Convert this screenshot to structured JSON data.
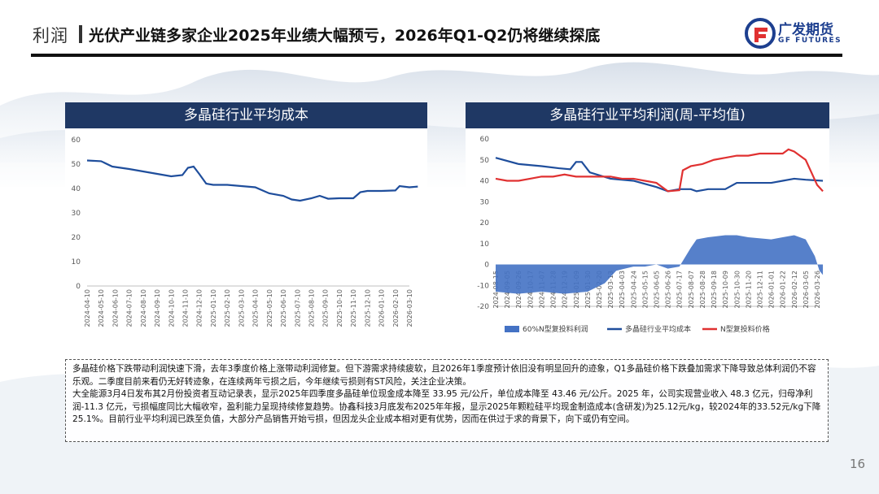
{
  "header": {
    "section_tag": "利润",
    "title": "光伏产业链多家企业2025年业绩大幅预亏，2026年Q1-Q2仍将继续探底",
    "logo_name": "广发期货",
    "logo_en": "GF FUTURES",
    "brand_color": "#1d3f8f"
  },
  "chart_left": {
    "title": "多晶硅行业平均成本"
  },
  "chart_right": {
    "title": "多晶硅行业平均利润(周-平均值)"
  },
  "chart_data": [
    {
      "type": "line",
      "title": "多晶硅行业平均成本",
      "x_tick_labels": [
        "2024-04-10",
        "2024-05-10",
        "2024-06-10",
        "2024-07-10",
        "2024-08-10",
        "2024-09-10",
        "2024-10-10",
        "2024-11-10",
        "2024-12-10",
        "2025-01-10",
        "2025-02-10",
        "2025-03-10",
        "2025-04-10",
        "2025-05-10",
        "2025-06-10",
        "2025-07-10",
        "2025-08-10",
        "2025-09-10",
        "2025-10-10",
        "2025-11-10",
        "2025-12-10",
        "2026-01-10",
        "2026-02-10",
        "2026-03-10"
      ],
      "ylim": [
        0,
        60
      ],
      "y_ticks": [
        0,
        10,
        20,
        30,
        40,
        50,
        60
      ],
      "series": [
        {
          "color": "#1f4e9c",
          "points": [
            [
              0,
              51.5
            ],
            [
              1,
              51.2
            ],
            [
              1.8,
              49
            ],
            [
              3,
              48
            ],
            [
              4,
              47
            ],
            [
              5,
              46
            ],
            [
              6,
              45
            ],
            [
              6.8,
              45.5
            ],
            [
              7.2,
              48.5
            ],
            [
              7.6,
              49
            ],
            [
              8,
              46
            ],
            [
              8.5,
              42
            ],
            [
              9,
              41.5
            ],
            [
              10,
              41.5
            ],
            [
              11,
              41
            ],
            [
              12,
              40.5
            ],
            [
              13,
              38
            ],
            [
              14,
              37
            ],
            [
              14.6,
              35.5
            ],
            [
              15.2,
              35
            ],
            [
              16,
              36
            ],
            [
              16.6,
              37
            ],
            [
              17.2,
              35.8
            ],
            [
              18,
              36
            ],
            [
              19,
              36
            ],
            [
              19.5,
              38.5
            ],
            [
              20,
              39
            ],
            [
              21,
              39
            ],
            [
              22,
              39.2
            ],
            [
              22.3,
              41
            ],
            [
              23,
              40.5
            ],
            [
              23.6,
              40.8
            ]
          ]
        }
      ]
    },
    {
      "type": "line",
      "title": "多晶硅行业平均利润(周-平均值)",
      "x_tick_labels": [
        "2024-08-15",
        "2024-09-05",
        "2024-09-26",
        "2024-10-17",
        "2024-11-07",
        "2024-11-28",
        "2024-12-19",
        "2025-01-09",
        "2025-01-30",
        "2025-02-20",
        "2025-03-13",
        "2025-04-03",
        "2025-04-24",
        "2025-05-15",
        "2025-06-05",
        "2025-06-26",
        "2025-07-17",
        "2025-08-07",
        "2025-08-28",
        "2025-09-18",
        "2025-10-09",
        "2025-10-30",
        "2025-11-20",
        "2025-12-11",
        "2026-01-01",
        "2026-01-22",
        "2026-02-12",
        "2026-03-05",
        "2026-03-26"
      ],
      "ylim": [
        -20,
        60
      ],
      "y_ticks": [
        -20,
        -10,
        0,
        10,
        20,
        30,
        40,
        50,
        60
      ],
      "legend": [
        "60%N型复投料利润",
        "多晶硅行业平均成本",
        "N型复投料价格"
      ],
      "series": [
        {
          "name": "60%N型复投料利润",
          "kind": "area",
          "color": "#4472c4",
          "points": [
            [
              0,
              -13
            ],
            [
              2,
              -14
            ],
            [
              4,
              -13
            ],
            [
              6,
              -14
            ],
            [
              8,
              -13
            ],
            [
              9.5,
              -9
            ],
            [
              10.5,
              -3
            ],
            [
              12,
              -1
            ],
            [
              13,
              -1
            ],
            [
              14,
              0
            ],
            [
              15,
              -2
            ],
            [
              16,
              -1
            ],
            [
              17,
              8
            ],
            [
              17.5,
              12
            ],
            [
              18.5,
              13
            ],
            [
              20,
              14
            ],
            [
              21,
              14
            ],
            [
              22,
              13
            ],
            [
              24,
              12
            ],
            [
              25,
              13
            ],
            [
              26,
              14
            ],
            [
              27,
              12
            ],
            [
              27.8,
              4
            ],
            [
              28.2,
              -3
            ],
            [
              28.5,
              -5
            ]
          ]
        },
        {
          "name": "多晶硅行业平均成本",
          "color": "#1f4e9c",
          "points": [
            [
              0,
              51
            ],
            [
              2,
              48
            ],
            [
              4,
              47
            ],
            [
              5.5,
              46
            ],
            [
              6.5,
              45.5
            ],
            [
              7,
              49
            ],
            [
              7.5,
              49
            ],
            [
              8.2,
              44
            ],
            [
              10,
              41
            ],
            [
              12,
              40
            ],
            [
              14,
              37
            ],
            [
              15,
              35
            ],
            [
              16,
              36
            ],
            [
              17,
              36
            ],
            [
              17.5,
              35
            ],
            [
              18.5,
              36
            ],
            [
              20,
              36
            ],
            [
              21,
              39
            ],
            [
              23,
              39
            ],
            [
              24,
              39
            ],
            [
              25,
              40
            ],
            [
              26,
              41
            ],
            [
              27,
              40.5
            ],
            [
              28.5,
              40
            ]
          ]
        },
        {
          "name": "N型复投料价格",
          "color": "#e03131",
          "points": [
            [
              0,
              41
            ],
            [
              1,
              40
            ],
            [
              2,
              40
            ],
            [
              3,
              41
            ],
            [
              4,
              42
            ],
            [
              5,
              42
            ],
            [
              6,
              43
            ],
            [
              7,
              42
            ],
            [
              8,
              42
            ],
            [
              9,
              42
            ],
            [
              10,
              42
            ],
            [
              11,
              41
            ],
            [
              12,
              41
            ],
            [
              13,
              40
            ],
            [
              14,
              39
            ],
            [
              15,
              35
            ],
            [
              16,
              35.5
            ],
            [
              16.3,
              45
            ],
            [
              17,
              47
            ],
            [
              18,
              48
            ],
            [
              19,
              50
            ],
            [
              20,
              51
            ],
            [
              21,
              52
            ],
            [
              22,
              52
            ],
            [
              23,
              53
            ],
            [
              24,
              53
            ],
            [
              25,
              53
            ],
            [
              25.5,
              55
            ],
            [
              26,
              54
            ],
            [
              26.5,
              52
            ],
            [
              27,
              50
            ],
            [
              27.5,
              44
            ],
            [
              28,
              38
            ],
            [
              28.5,
              35
            ]
          ]
        }
      ]
    }
  ],
  "notes": [
    "多晶硅价格下跌带动利润快速下滑，去年3季度价格上涨带动利润修复。但下游需求持续疲软，且2026年1季度预计依旧没有明显回升的迹象，Q1多晶硅价格下跌叠加需求下降导致总体利润仍不容乐观。二季度目前来看仍无好转迹象，在连续两年亏损之后，今年继续亏损则有ST风险，关注企业决策。",
    "大全能源3月4日发布其2月份投资者互动记录表，显示2025年四季度多晶硅单位现金成本降至 33.95 元/公斤，单位成本降至 43.46 元/公斤。2025 年，公司实现营业收入 48.3 亿元，归母净利润-11.3 亿元，亏损幅度同比大幅收窄，盈利能力呈现持续修复趋势。协鑫科技3月底发布2025年年报，显示2025年颗粒硅平均现金制造成本(含研发)为25.12元/kg，较2024年的33.52元/kg下降25.1%。目前行业平均利润已跌至负值，大部分产品销售开始亏损，但因龙头企业成本相对更有优势，因而在供过于求的背景下，向下或仍有空间。"
  ],
  "page_number": "16"
}
